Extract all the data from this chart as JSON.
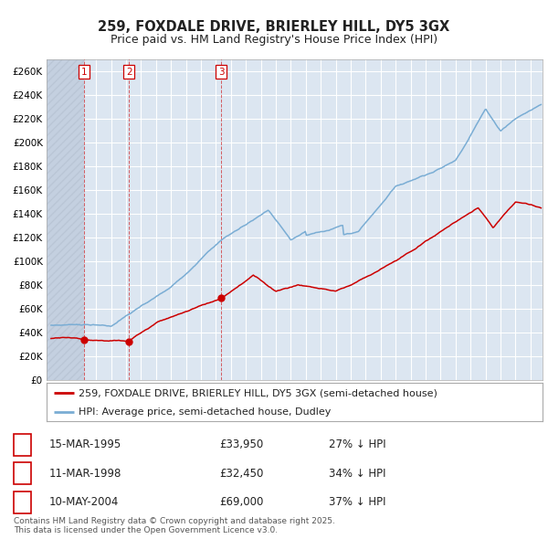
{
  "title": "259, FOXDALE DRIVE, BRIERLEY HILL, DY5 3GX",
  "subtitle": "Price paid vs. HM Land Registry's House Price Index (HPI)",
  "legend_line1": "259, FOXDALE DRIVE, BRIERLEY HILL, DY5 3GX (semi-detached house)",
  "legend_line2": "HPI: Average price, semi-detached house, Dudley",
  "red_color": "#cc0000",
  "blue_color": "#7aadd4",
  "plot_bg": "#dce6f1",
  "grid_color": "#ffffff",
  "hatch_bg": "#c4d0e0",
  "transactions": [
    {
      "num": 1,
      "date": "15-MAR-1995",
      "price": 33950,
      "pct": "27%",
      "x_year": 1995.21
    },
    {
      "num": 2,
      "date": "11-MAR-1998",
      "price": 32450,
      "pct": "34%",
      "x_year": 1998.19
    },
    {
      "num": 3,
      "date": "10-MAY-2004",
      "price": 69000,
      "pct": "37%",
      "x_year": 2004.36
    }
  ],
  "footnote": "Contains HM Land Registry data © Crown copyright and database right 2025.\nThis data is licensed under the Open Government Licence v3.0.",
  "ylim": [
    0,
    270000
  ],
  "yticks": [
    0,
    20000,
    40000,
    60000,
    80000,
    100000,
    120000,
    140000,
    160000,
    180000,
    200000,
    220000,
    240000,
    260000
  ],
  "xlim_start": 1992.7,
  "xlim_end": 2025.8,
  "xtick_start": 1993,
  "xtick_end": 2025,
  "title_fontsize": 10.5,
  "subtitle_fontsize": 9,
  "tick_fontsize": 7.5,
  "legend_fontsize": 8,
  "table_fontsize": 8.5,
  "footnote_fontsize": 6.5
}
